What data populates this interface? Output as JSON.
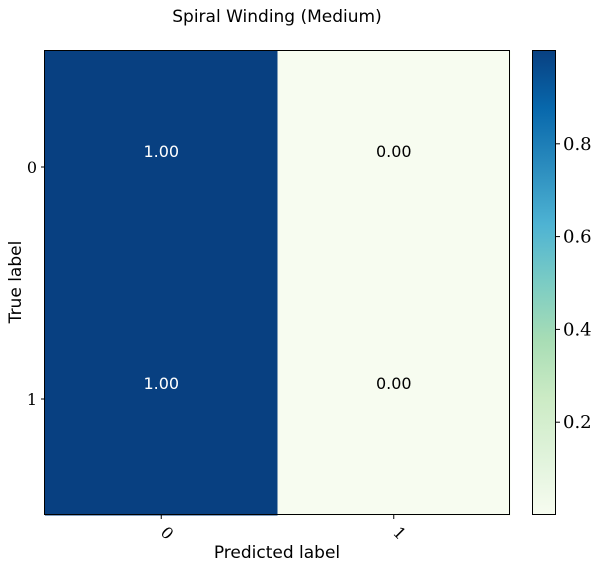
{
  "chart_data": {
    "type": "heatmap",
    "title": "Spiral Winding (Medium)",
    "xlabel": "Predicted label",
    "ylabel": "True label",
    "x_categories": [
      "0",
      "1"
    ],
    "y_categories": [
      "0",
      "1"
    ],
    "values": [
      [
        1.0,
        0.0
      ],
      [
        1.0,
        0.0
      ]
    ],
    "cell_labels": [
      [
        "1.00",
        "0.00"
      ],
      [
        "1.00",
        "0.00"
      ]
    ],
    "colormap": "GnBu",
    "vlim": [
      0.0,
      1.0
    ],
    "colorbar_ticks": [
      0.2,
      0.4,
      0.6,
      0.8
    ],
    "colorbar_tick_labels": [
      "0.2",
      "0.4",
      "0.6",
      "0.8"
    ],
    "colors": {
      "low": "#f7fcf0",
      "high": "#084081",
      "text_on_dark": "#ffffff",
      "text_on_light": "#000000"
    }
  }
}
